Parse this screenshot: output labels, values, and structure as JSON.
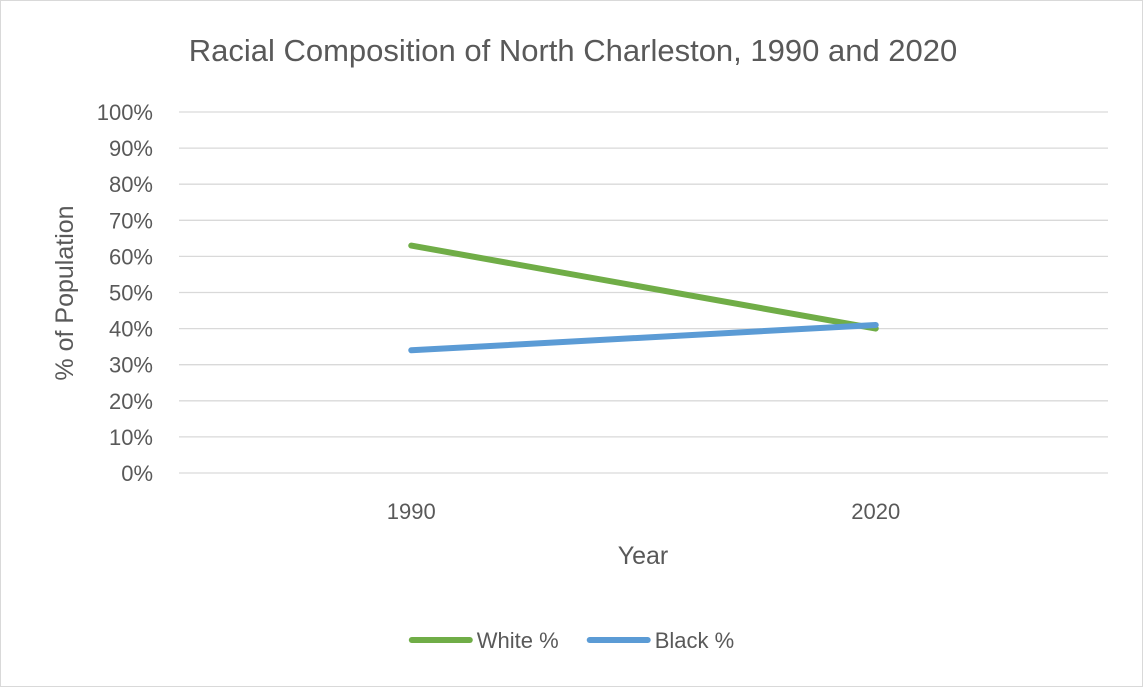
{
  "chart_data": {
    "type": "line",
    "title": "Racial Composition of North Charleston, 1990 and 2020",
    "xlabel": "Year",
    "ylabel": "% of Population",
    "categories": [
      "1990",
      "2020"
    ],
    "ylim": [
      0,
      100
    ],
    "yticks": [
      "0%",
      "10%",
      "20%",
      "30%",
      "40%",
      "50%",
      "60%",
      "70%",
      "80%",
      "90%",
      "100%"
    ],
    "grid": true,
    "legend_position": "bottom",
    "series": [
      {
        "name": "White %",
        "values": [
          63,
          40
        ],
        "color": "#70ad47"
      },
      {
        "name": "Black %",
        "values": [
          34,
          41
        ],
        "color": "#5b9bd5"
      }
    ]
  }
}
